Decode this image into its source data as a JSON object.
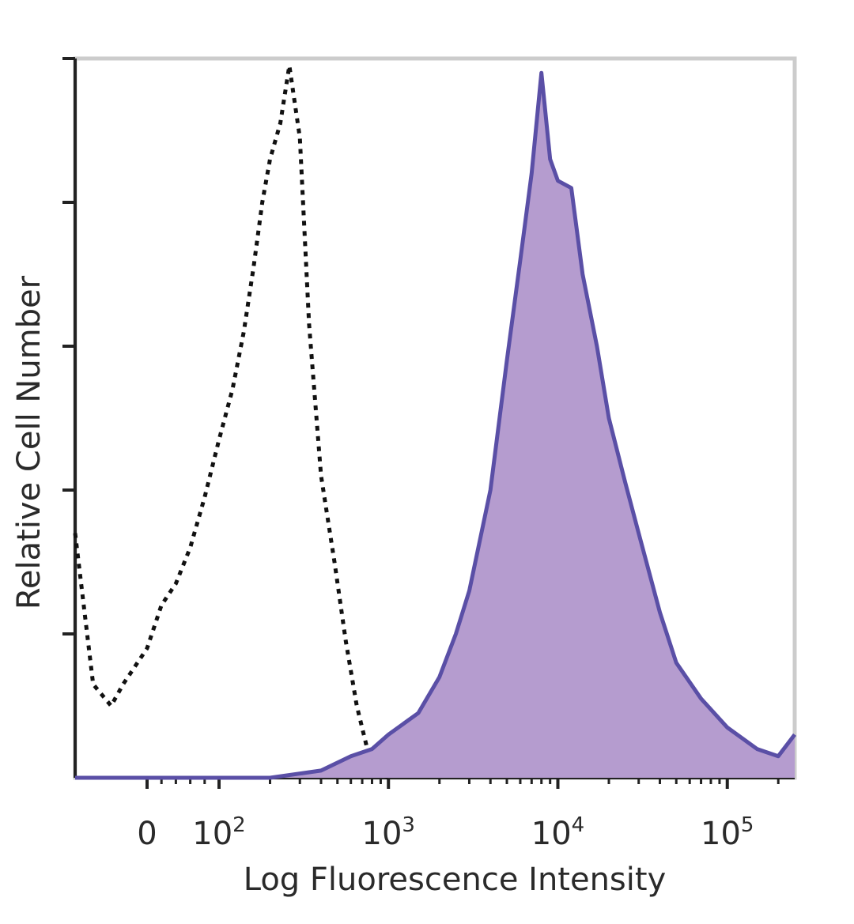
{
  "chart_data": {
    "type": "area",
    "title": "",
    "xlabel": "Log Fluorescence Intensity",
    "ylabel": "Relative Cell Number",
    "x_scale": "biexponential",
    "xlim": [
      -60,
      250000
    ],
    "ylim": [
      0,
      100
    ],
    "x_ticks": [
      {
        "value": 0,
        "base": "0",
        "exp": ""
      },
      {
        "value": 100,
        "base": "10",
        "exp": "2"
      },
      {
        "value": 1000,
        "base": "10",
        "exp": "3"
      },
      {
        "value": 10000,
        "base": "10",
        "exp": "4"
      },
      {
        "value": 100000,
        "base": "10",
        "exp": "5"
      }
    ],
    "grid": false,
    "legend": "none",
    "colors": {
      "stained_line": "#5a4fa6",
      "stained_fill": "#b59ccf",
      "control_line": "#111111",
      "frame": "#cccccc",
      "axis": "#222222"
    },
    "series": [
      {
        "style": "dotted-black",
        "x": [
          -60,
          -45,
          -30,
          -20,
          0,
          20,
          40,
          60,
          80,
          100,
          120,
          140,
          160,
          180,
          200,
          230,
          260,
          300,
          340,
          400,
          480,
          560,
          650,
          750,
          850,
          1000
        ],
        "y": [
          34,
          13,
          10,
          13,
          18,
          24,
          27,
          32,
          39,
          47,
          54,
          62,
          71,
          80,
          86,
          91,
          99,
          89,
          63,
          42,
          30,
          19,
          10,
          4,
          1,
          0
        ]
      },
      {
        "style": "solid-purple-filled",
        "x": [
          -60,
          200,
          400,
          600,
          800,
          1000,
          1500,
          2000,
          2500,
          3000,
          4000,
          5000,
          6000,
          7000,
          8000,
          9000,
          10000,
          12000,
          14000,
          17000,
          20000,
          25000,
          30000,
          40000,
          50000,
          70000,
          100000,
          150000,
          200000,
          250000
        ],
        "y": [
          0,
          0,
          1,
          3,
          4,
          6,
          9,
          14,
          20,
          26,
          40,
          58,
          72,
          84,
          98,
          86,
          83,
          82,
          70,
          60,
          50,
          41,
          34,
          23,
          16,
          11,
          7,
          4,
          3,
          6
        ]
      }
    ]
  }
}
